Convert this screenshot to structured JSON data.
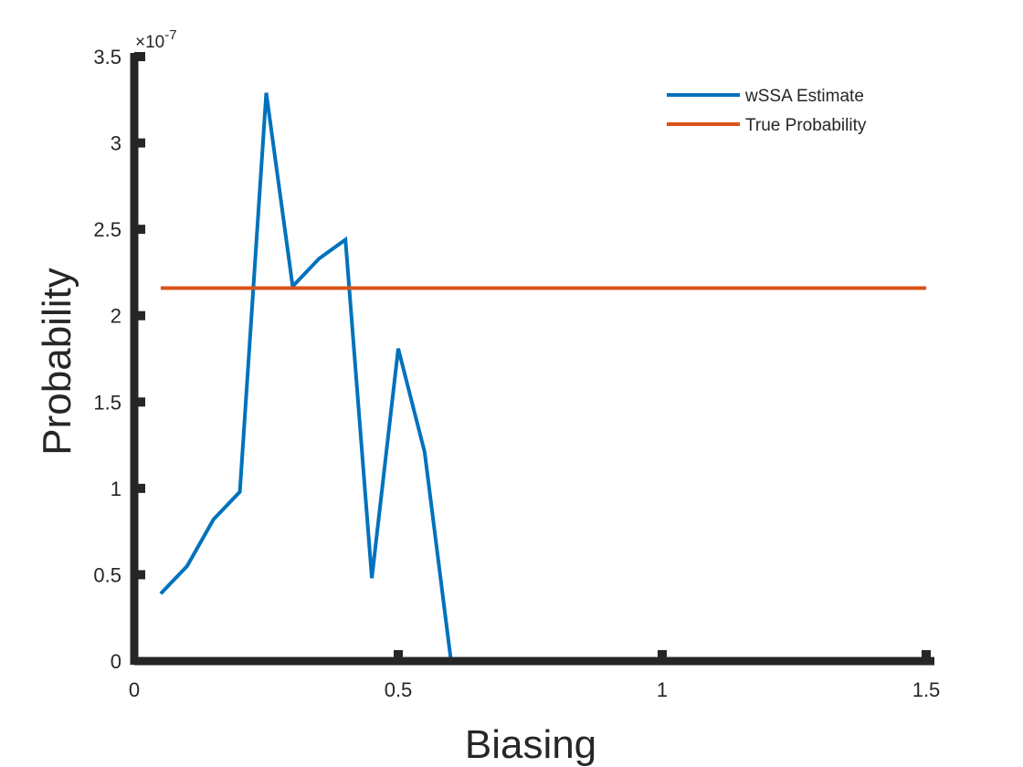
{
  "chart_data": {
    "type": "line",
    "xlabel": "Biasing",
    "ylabel": "Probability",
    "xlim": [
      0,
      1.5
    ],
    "ylim": [
      0,
      3.5
    ],
    "y_exponent_label": {
      "base": "×10",
      "power": "-7"
    },
    "xticks": [
      {
        "value": 0,
        "label": "0"
      },
      {
        "value": 0.5,
        "label": "0.5"
      },
      {
        "value": 1,
        "label": "1"
      },
      {
        "value": 1.5,
        "label": "1.5"
      }
    ],
    "yticks": [
      {
        "value": 0,
        "label": "0"
      },
      {
        "value": 0.5,
        "label": "0.5"
      },
      {
        "value": 1,
        "label": "1"
      },
      {
        "value": 1.5,
        "label": "1.5"
      },
      {
        "value": 2,
        "label": "2"
      },
      {
        "value": 2.5,
        "label": "2.5"
      },
      {
        "value": 3,
        "label": "3"
      },
      {
        "value": 3.5,
        "label": "3.5"
      }
    ],
    "legend_position": "top-right",
    "grid": false,
    "series": [
      {
        "name": "wSSA Estimate",
        "color": "#0072BD",
        "x": [
          0.05,
          0.1,
          0.15,
          0.2,
          0.25,
          0.3,
          0.35,
          0.4,
          0.45,
          0.5,
          0.55,
          0.6,
          0.65,
          0.7,
          0.75,
          0.8,
          0.85,
          0.9,
          0.95,
          1.0,
          1.05,
          1.1,
          1.15,
          1.2,
          1.25,
          1.3,
          1.35,
          1.4,
          1.45,
          1.5
        ],
        "y": [
          0.39,
          0.55,
          0.82,
          0.98,
          3.29,
          2.17,
          2.33,
          2.44,
          0.48,
          1.81,
          1.21,
          0,
          0,
          0,
          0,
          0,
          0,
          0,
          0,
          0,
          0,
          0,
          0,
          0,
          0,
          0,
          0,
          0,
          0,
          0
        ]
      },
      {
        "name": "True Probability",
        "color": "#D95319",
        "x": [
          0.05,
          1.5
        ],
        "y": [
          2.16,
          2.16
        ]
      }
    ]
  }
}
